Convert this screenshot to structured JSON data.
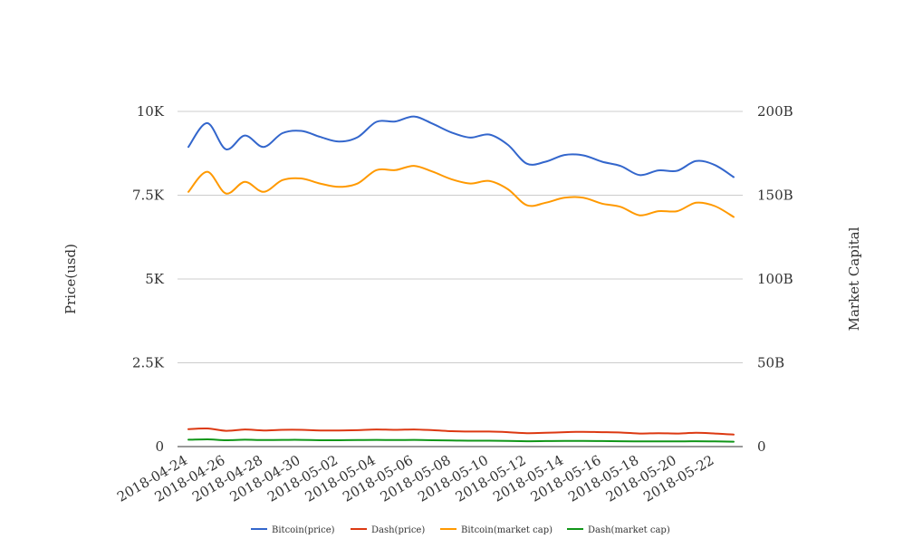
{
  "chart_data": {
    "type": "line",
    "y_left_label": "Price(usd)",
    "y_right_label": "Market Capital",
    "y_left_range": [
      0,
      10000
    ],
    "y_right_range": [
      0,
      200000000000
    ],
    "y_left_ticks": [
      "0",
      "2.5K",
      "5K",
      "7.5K",
      "10K"
    ],
    "y_right_ticks": [
      "0",
      "50B",
      "100B",
      "150B",
      "200B"
    ],
    "x": [
      "2018-04-24",
      "2018-04-25",
      "2018-04-26",
      "2018-04-27",
      "2018-04-28",
      "2018-04-29",
      "2018-04-30",
      "2018-05-01",
      "2018-05-02",
      "2018-05-03",
      "2018-05-04",
      "2018-05-05",
      "2018-05-06",
      "2018-05-07",
      "2018-05-08",
      "2018-05-09",
      "2018-05-10",
      "2018-05-11",
      "2018-05-12",
      "2018-05-13",
      "2018-05-14",
      "2018-05-15",
      "2018-05-16",
      "2018-05-17",
      "2018-05-18",
      "2018-05-19",
      "2018-05-20",
      "2018-05-21",
      "2018-05-22",
      "2018-05-23"
    ],
    "x_tick_labels": [
      "2018-04-24",
      "2018-04-26",
      "2018-04-28",
      "2018-04-30",
      "2018-05-02",
      "2018-05-04",
      "2018-05-06",
      "2018-05-08",
      "2018-05-10",
      "2018-05-12",
      "2018-05-14",
      "2018-05-16",
      "2018-05-18",
      "2018-05-20",
      "2018-05-22"
    ],
    "grid": true,
    "legend_position": "bottom",
    "series": [
      {
        "name": "Bitcoin(price)",
        "axis": "left",
        "color": "#3366cc",
        "values": [
          8940,
          9650,
          8870,
          9280,
          8940,
          9350,
          9420,
          9240,
          9100,
          9230,
          9690,
          9700,
          9850,
          9630,
          9370,
          9220,
          9310,
          9000,
          8440,
          8500,
          8700,
          8690,
          8500,
          8370,
          8100,
          8240,
          8230,
          8520,
          8400,
          8040
        ]
      },
      {
        "name": "Dash(price)",
        "axis": "left",
        "color": "#dc3912",
        "values": [
          520,
          540,
          470,
          510,
          480,
          500,
          500,
          480,
          480,
          490,
          510,
          500,
          510,
          490,
          460,
          450,
          450,
          430,
          400,
          410,
          430,
          440,
          430,
          420,
          390,
          400,
          390,
          410,
          390,
          360
        ]
      },
      {
        "name": "Bitcoin(market cap)",
        "axis": "right",
        "color": "#ff9900",
        "values": [
          152000000000,
          164000000000,
          151000000000,
          158000000000,
          152000000000,
          159000000000,
          160000000000,
          157000000000,
          155000000000,
          157000000000,
          165000000000,
          165000000000,
          167500000000,
          164000000000,
          159500000000,
          157000000000,
          158500000000,
          153500000000,
          144000000000,
          145500000000,
          148500000000,
          148500000000,
          145000000000,
          143000000000,
          138000000000,
          140500000000,
          140500000000,
          145500000000,
          143500000000,
          137000000000
        ]
      },
      {
        "name": "Dash(market cap)",
        "axis": "right",
        "color": "#109618",
        "values": [
          4100000000,
          4300000000,
          3800000000,
          4100000000,
          3900000000,
          4000000000,
          4000000000,
          3800000000,
          3800000000,
          3900000000,
          4000000000,
          3900000000,
          4000000000,
          3800000000,
          3600000000,
          3500000000,
          3500000000,
          3400000000,
          3200000000,
          3300000000,
          3400000000,
          3400000000,
          3300000000,
          3200000000,
          3100000000,
          3100000000,
          3100000000,
          3200000000,
          3100000000,
          2900000000
        ]
      }
    ]
  }
}
